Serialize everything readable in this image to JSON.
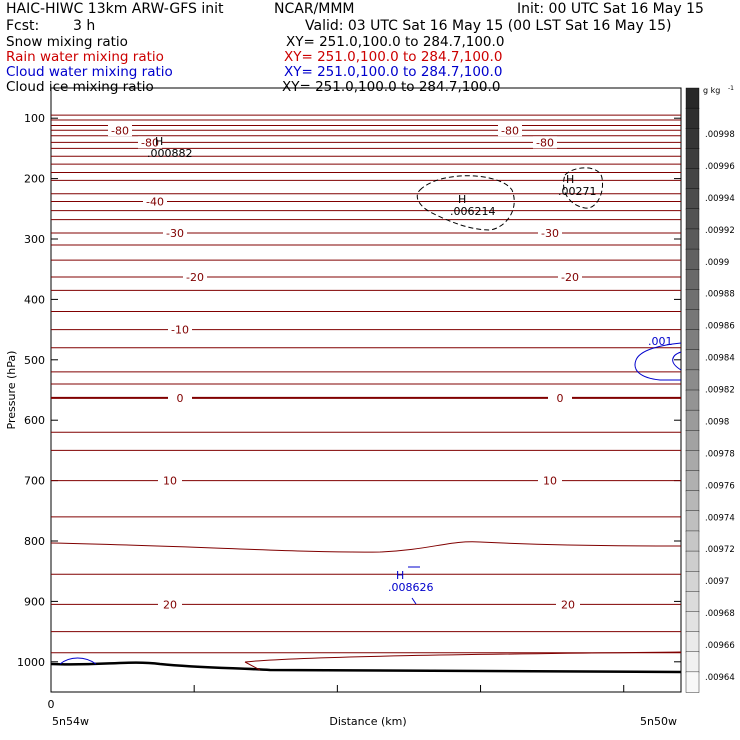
{
  "header": {
    "model": "HAIC-HIWC 13km ARW-GFS init",
    "org": "NCAR/MMM",
    "init": "Init: 00 UTC Sat 16 May 15",
    "fcst_label": "Fcst:",
    "fcst_value": "3 h",
    "valid": "Valid: 03 UTC Sat 16 May 15 (00 LST Sat 16 May 15)"
  },
  "fields": [
    {
      "name": "Snow mixing ratio",
      "xy": "XY= 251.0,100.0 to 284.7,100.0",
      "color": "#000000"
    },
    {
      "name": "Rain water mixing ratio",
      "xy": "XY= 251.0,100.0 to 284.7,100.0",
      "color": "#cc0000"
    },
    {
      "name": "Cloud water mixing ratio",
      "xy": "XY= 251.0,100.0 to 284.7,100.0",
      "color": "#0000cc"
    },
    {
      "name": "Cloud ice mixing ratio",
      "xy": "XY= 251.0,100.0 to 284.7,100.0",
      "color": "#000000"
    }
  ],
  "chart_data": {
    "type": "line",
    "title": "",
    "xlabel": "Distance (km)",
    "ylabel": "Pressure (hPa)",
    "x_start_label": "5n54w",
    "x_end_label": "5n50w",
    "x_origin_label": "0",
    "ylim": [
      1050,
      50
    ],
    "y_ticks": [
      100,
      200,
      300,
      400,
      500,
      600,
      700,
      800,
      900,
      1000
    ],
    "temperature_contours": [
      {
        "label": "-80",
        "p": 120
      },
      {
        "label": "-80",
        "p": 140
      },
      {
        "label": "-40",
        "p": 238
      },
      {
        "label": "-30",
        "p": 290
      },
      {
        "label": "-20",
        "p": 363
      },
      {
        "label": "-10",
        "p": 450
      },
      {
        "label": "0",
        "p": 563
      },
      {
        "label": "10",
        "p": 700
      },
      {
        "label": "20",
        "p": 905
      }
    ],
    "maxima_labels": [
      {
        "mark": "H",
        "value": ".000882"
      },
      {
        "mark": "H",
        "value": ".006214"
      },
      {
        "mark": "H",
        "value": ".00271"
      },
      {
        "mark": "H",
        "value": ".008626"
      }
    ],
    "cloud_water_label": ".001",
    "colorbar": {
      "unit": "g kg",
      "unit_exp": "-1",
      "labels": [
        ".00998",
        ".00996",
        ".00994",
        ".00992",
        ".0099",
        ".00988",
        ".00986",
        ".00984",
        ".00982",
        ".0098",
        ".00978",
        ".00976",
        ".00974",
        ".00972",
        ".0097",
        ".00968",
        ".00966",
        ".00964"
      ]
    },
    "colors": {
      "temperature": "#800000",
      "ground": "#000000",
      "cloud_water": "#0000cc"
    }
  }
}
